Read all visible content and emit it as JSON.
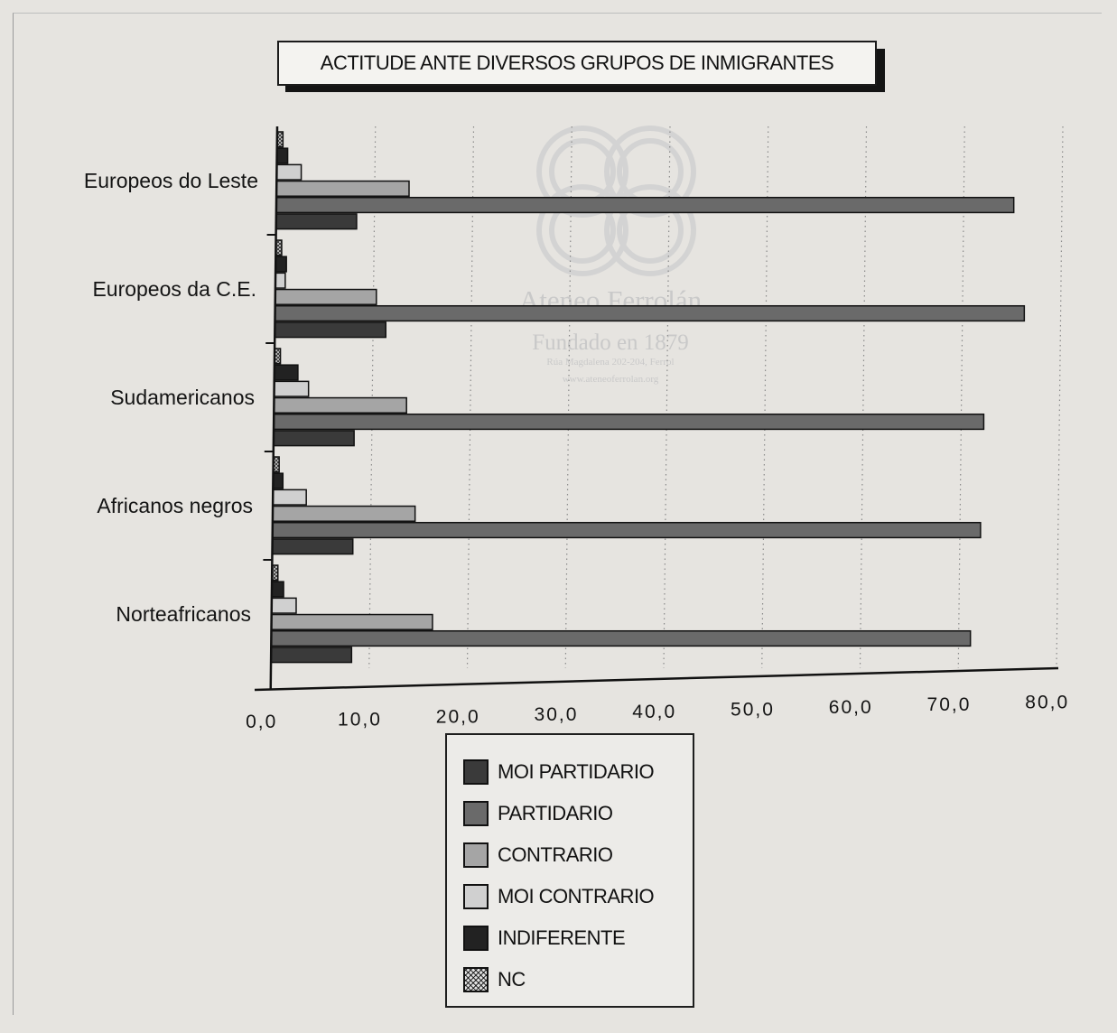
{
  "chart_data": {
    "type": "bar",
    "orientation": "horizontal",
    "title": "ACTITUDE ANTE DIVERSOS GRUPOS DE INMIGRANTES",
    "xlabel": "",
    "ylabel": "",
    "categories": [
      "Europeos do Leste",
      "Europeos da C.E.",
      "Sudamericanos",
      "Africanos  negros",
      "Norteafricanos"
    ],
    "x_ticks": [
      "0,0",
      "10,0",
      "20,0",
      "30,0",
      "40,0",
      "50,0",
      "60,0",
      "70,0",
      "80,0"
    ],
    "xlim": [
      0,
      80
    ],
    "grid": "vertical dotted",
    "legend_position": "bottom",
    "series": [
      {
        "name": "MOI PARTIDARIO",
        "color": "#3a3a3a",
        "values": [
          8.2,
          11.3,
          8.2,
          8.2,
          8.2
        ]
      },
      {
        "name": "PARTIDARIO",
        "color": "#6a6a6a",
        "values": [
          75.1,
          76.3,
          72.3,
          72.1,
          71.2
        ]
      },
      {
        "name": "CONTRARIO",
        "color": "#a5a5a5",
        "values": [
          13.5,
          10.3,
          13.5,
          14.5,
          16.4
        ]
      },
      {
        "name": "MOI CONTRARIO",
        "color": "#d0d0d0",
        "values": [
          2.5,
          1.0,
          3.5,
          3.4,
          2.5
        ]
      },
      {
        "name": "INDIFERENTE",
        "color": "#222222",
        "values": [
          1.1,
          1.1,
          2.4,
          1.0,
          1.2
        ]
      },
      {
        "name": "NC",
        "color": "#b8b8b8",
        "pattern": "crosshatch",
        "values": [
          0.6,
          0.6,
          0.6,
          0.6,
          0.6
        ]
      }
    ]
  },
  "watermark": {
    "line1": "Ateneo Ferrolán",
    "line2": "Fundado en 1879",
    "line3": "Rúa Magdalena 202-204, Ferrol",
    "line4": "www.ateneoferrolan.org"
  }
}
